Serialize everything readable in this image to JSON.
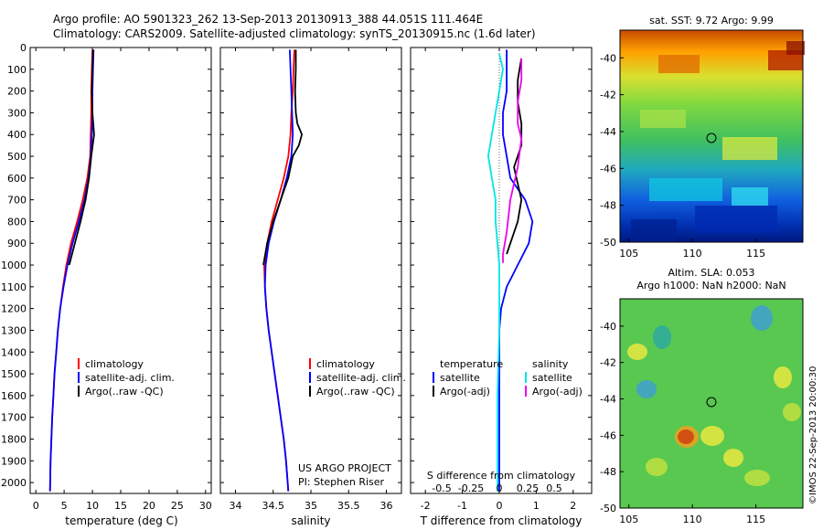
{
  "title": {
    "line1": "Argo profile: AO 5901323_262 13-Sep-2013 20130913_388 44.051S 111.464E",
    "line2": "Climatology: CARS2009. Satellite-adjusted climatology: synTS_20130915.nc (1.6d later)"
  },
  "colors": {
    "climatology": "#ff0000",
    "satellite": "#0000ff",
    "argo": "#000000",
    "sat_salinity": "#00e5e5",
    "argo_salinity": "#ee00ee"
  },
  "chart_data": [
    {
      "type": "line",
      "xlabel": "temperature (deg C)",
      "xlim": [
        -1,
        31
      ],
      "ylim": [
        0,
        2050
      ],
      "x_ticks": [
        0,
        5,
        10,
        15,
        20,
        25,
        30
      ],
      "y_ticks": [
        0,
        100,
        200,
        300,
        400,
        500,
        600,
        700,
        800,
        900,
        1000,
        1100,
        1200,
        1300,
        1400,
        1500,
        1600,
        1700,
        1800,
        1900,
        2000
      ],
      "legend": [
        "climatology",
        "satellite-adj. clim.",
        "Argo(..raw -QC)"
      ],
      "series": [
        {
          "name": "climatology",
          "color_key": "climatology",
          "points": [
            [
              10,
              10
            ],
            [
              9.9,
              100
            ],
            [
              9.8,
              200
            ],
            [
              9.8,
              300
            ],
            [
              9.7,
              400
            ],
            [
              9.6,
              500
            ],
            [
              9.1,
              600
            ],
            [
              8.3,
              700
            ],
            [
              7.3,
              800
            ],
            [
              6.2,
              900
            ],
            [
              5.4,
              1000
            ],
            [
              4.8,
              1100
            ],
            [
              4.3,
              1200
            ],
            [
              3.9,
              1300
            ],
            [
              3.6,
              1400
            ],
            [
              3.3,
              1500
            ],
            [
              3.1,
              1600
            ],
            [
              2.9,
              1700
            ],
            [
              2.75,
              1800
            ],
            [
              2.6,
              1900
            ],
            [
              2.5,
              2040
            ]
          ]
        },
        {
          "name": "satellite-adj. clim.",
          "color_key": "satellite",
          "points": [
            [
              10.2,
              10
            ],
            [
              10.1,
              100
            ],
            [
              10.0,
              200
            ],
            [
              10.0,
              300
            ],
            [
              9.9,
              400
            ],
            [
              9.7,
              500
            ],
            [
              9.3,
              600
            ],
            [
              8.6,
              700
            ],
            [
              7.6,
              800
            ],
            [
              6.5,
              900
            ],
            [
              5.6,
              1000
            ],
            [
              4.9,
              1100
            ],
            [
              4.3,
              1200
            ],
            [
              3.9,
              1300
            ],
            [
              3.6,
              1400
            ],
            [
              3.3,
              1500
            ],
            [
              3.1,
              1600
            ],
            [
              2.9,
              1700
            ],
            [
              2.75,
              1800
            ],
            [
              2.6,
              1900
            ],
            [
              2.5,
              2040
            ]
          ]
        },
        {
          "name": "Argo(..raw -QC)",
          "color_key": "argo",
          "points": [
            [
              10.1,
              10
            ],
            [
              10.0,
              100
            ],
            [
              9.9,
              200
            ],
            [
              10.0,
              300
            ],
            [
              10.3,
              400
            ],
            [
              9.8,
              500
            ],
            [
              9.4,
              600
            ],
            [
              8.8,
              700
            ],
            [
              7.9,
              800
            ],
            [
              6.9,
              900
            ],
            [
              5.9,
              1000
            ]
          ]
        }
      ]
    },
    {
      "type": "line",
      "xlabel": "salinity",
      "xlim": [
        33.8,
        36.2
      ],
      "ylim": [
        0,
        2050
      ],
      "x_ticks": [
        34,
        34.5,
        35,
        35.5,
        36
      ],
      "legend": [
        "climatology",
        "satellite-adj. clim.",
        "Argo(..raw -QC)"
      ],
      "annotation": [
        "US ARGO PROJECT",
        "PI: Stephen Riser"
      ],
      "series": [
        {
          "name": "climatology",
          "color_key": "climatology",
          "points": [
            [
              34.78,
              10
            ],
            [
              34.77,
              100
            ],
            [
              34.76,
              200
            ],
            [
              34.74,
              300
            ],
            [
              34.73,
              400
            ],
            [
              34.7,
              500
            ],
            [
              34.64,
              600
            ],
            [
              34.56,
              700
            ],
            [
              34.48,
              800
            ],
            [
              34.42,
              900
            ],
            [
              34.38,
              1000
            ],
            [
              34.39,
              1100
            ],
            [
              34.41,
              1200
            ],
            [
              34.44,
              1300
            ],
            [
              34.48,
              1400
            ],
            [
              34.52,
              1500
            ],
            [
              34.56,
              1600
            ],
            [
              34.6,
              1700
            ],
            [
              34.64,
              1800
            ],
            [
              34.67,
              1900
            ],
            [
              34.7,
              2040
            ]
          ]
        },
        {
          "name": "satellite-adj. clim.",
          "color_key": "satellite",
          "points": [
            [
              34.72,
              10
            ],
            [
              34.73,
              100
            ],
            [
              34.74,
              200
            ],
            [
              34.75,
              300
            ],
            [
              34.76,
              400
            ],
            [
              34.74,
              500
            ],
            [
              34.68,
              600
            ],
            [
              34.6,
              700
            ],
            [
              34.51,
              800
            ],
            [
              34.44,
              900
            ],
            [
              34.4,
              1000
            ],
            [
              34.39,
              1100
            ],
            [
              34.41,
              1200
            ],
            [
              34.44,
              1300
            ],
            [
              34.48,
              1400
            ],
            [
              34.52,
              1500
            ],
            [
              34.56,
              1600
            ],
            [
              34.6,
              1700
            ],
            [
              34.64,
              1800
            ],
            [
              34.67,
              1900
            ],
            [
              34.7,
              2040
            ]
          ]
        },
        {
          "name": "Argo(..raw -QC)",
          "color_key": "argo",
          "points": [
            [
              34.8,
              10
            ],
            [
              34.8,
              100
            ],
            [
              34.79,
              200
            ],
            [
              34.8,
              300
            ],
            [
              34.82,
              350
            ],
            [
              34.88,
              400
            ],
            [
              34.84,
              450
            ],
            [
              34.76,
              500
            ],
            [
              34.7,
              600
            ],
            [
              34.6,
              700
            ],
            [
              34.5,
              800
            ],
            [
              34.42,
              900
            ],
            [
              34.37,
              1000
            ]
          ]
        }
      ]
    },
    {
      "type": "line",
      "xlabel": "T difference from climatology",
      "x2label": "S difference from climatology",
      "xlim": [
        -2.4,
        2.5
      ],
      "ylim": [
        0,
        2050
      ],
      "x_ticks": [
        -2,
        -1,
        0,
        1,
        2
      ],
      "x2_ticks": [
        "-0.5",
        "-0.25",
        "0",
        "0.25",
        "0.5"
      ],
      "legend_headers": [
        "temperature",
        "salinity"
      ],
      "legend": [
        "satellite",
        "Argo(-adj)",
        "satellite",
        "Argo(-adj)"
      ],
      "series": [
        {
          "name": "temperature satellite",
          "color_key": "satellite",
          "points": [
            [
              0.2,
              10
            ],
            [
              0.2,
              100
            ],
            [
              0.2,
              200
            ],
            [
              0.1,
              300
            ],
            [
              0.1,
              400
            ],
            [
              0.2,
              500
            ],
            [
              0.3,
              600
            ],
            [
              0.7,
              700
            ],
            [
              0.9,
              800
            ],
            [
              0.8,
              900
            ],
            [
              0.5,
              1000
            ],
            [
              0.2,
              1100
            ],
            [
              0.05,
              1200
            ],
            [
              0.0,
              1300
            ],
            [
              0,
              1500
            ],
            [
              0,
              1800
            ],
            [
              0,
              2040
            ]
          ]
        },
        {
          "name": "temperature Argo(-adj)",
          "color_key": "argo",
          "points": [
            [
              0.6,
              50
            ],
            [
              0.5,
              150
            ],
            [
              0.5,
              250
            ],
            [
              0.6,
              350
            ],
            [
              0.6,
              450
            ],
            [
              0.4,
              550
            ],
            [
              0.6,
              700
            ],
            [
              0.5,
              800
            ],
            [
              0.3,
              900
            ],
            [
              0.2,
              950
            ]
          ]
        },
        {
          "name": "salinity satellite",
          "color_key": "sat_salinity",
          "points": [
            [
              0.0,
              30
            ],
            [
              0.1,
              100
            ],
            [
              0.0,
              200
            ],
            [
              -0.1,
              300
            ],
            [
              -0.2,
              400
            ],
            [
              -0.3,
              500
            ],
            [
              -0.2,
              600
            ],
            [
              -0.1,
              700
            ],
            [
              -0.1,
              800
            ],
            [
              -0.05,
              900
            ],
            [
              0,
              1000
            ],
            [
              0,
              1300
            ],
            [
              -0.05,
              1600
            ],
            [
              -0.05,
              2040
            ]
          ]
        },
        {
          "name": "salinity Argo(-adj)",
          "color_key": "argo_salinity",
          "points": [
            [
              0.6,
              50
            ],
            [
              0.6,
              150
            ],
            [
              0.5,
              250
            ],
            [
              0.5,
              350
            ],
            [
              0.6,
              420
            ],
            [
              0.5,
              550
            ],
            [
              0.3,
              700
            ],
            [
              0.2,
              850
            ],
            [
              0.1,
              950
            ],
            [
              0.1,
              990
            ]
          ]
        }
      ]
    },
    {
      "type": "heatmap",
      "title": "sat. SST: 9.72 Argo: 9.99",
      "xlim": [
        104.3,
        118.7
      ],
      "ylim": [
        -50,
        -38.5
      ],
      "x_ticks": [
        105,
        110,
        115
      ],
      "y_ticks": [
        -50,
        -48,
        -46,
        -44,
        -42,
        -40
      ],
      "marker": [
        111.46,
        -44.05
      ]
    },
    {
      "type": "heatmap",
      "title_line1": "Altim. SLA: 0.053",
      "title_line2": "Argo h1000: NaN h2000: NaN",
      "xlim": [
        104.3,
        118.7
      ],
      "ylim": [
        -50,
        -38.5
      ],
      "x_ticks": [
        105,
        110,
        115
      ],
      "y_ticks": [
        -50,
        -48,
        -46,
        -44,
        -42,
        -40
      ],
      "marker": [
        111.46,
        -44.05
      ],
      "side_label": "©IMOS 22-Sep-2013 20:00:30"
    }
  ]
}
